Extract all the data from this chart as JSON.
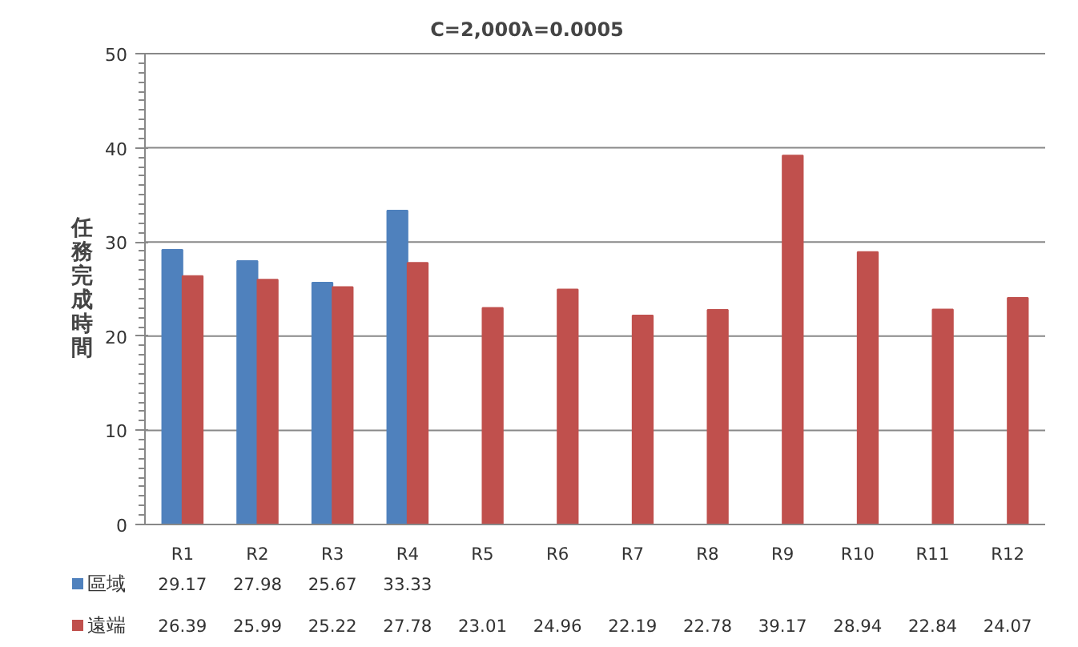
{
  "chart_data": {
    "type": "bar",
    "title": "C=2,000λ=0.0005",
    "ylabel": "任務完成時間",
    "categories": [
      "R1",
      "R2",
      "R3",
      "R4",
      "R5",
      "R6",
      "R7",
      "R8",
      "R9",
      "R10",
      "R11",
      "R12"
    ],
    "series": [
      {
        "name": "區域",
        "color": "#4f81bd",
        "values": [
          29.17,
          27.98,
          25.67,
          33.33,
          null,
          null,
          null,
          null,
          null,
          null,
          null,
          null
        ]
      },
      {
        "name": "遠端",
        "color": "#c0504d",
        "values": [
          26.39,
          25.99,
          25.22,
          27.78,
          23.01,
          24.96,
          22.19,
          22.78,
          39.17,
          28.94,
          22.84,
          24.07
        ]
      }
    ],
    "ylim": [
      0,
      50
    ],
    "yticks": [
      0,
      10,
      20,
      30,
      40,
      50
    ],
    "grid": "y",
    "data_labels": true,
    "legend": "bottom left"
  }
}
